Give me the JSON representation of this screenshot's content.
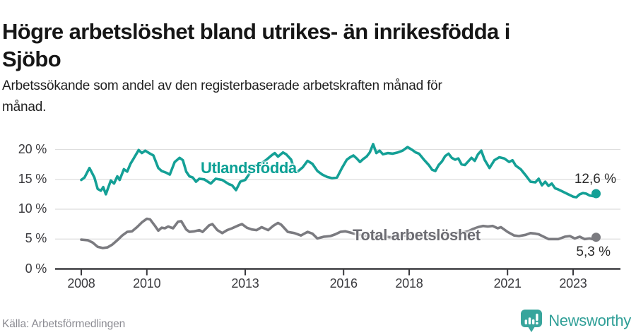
{
  "header": {
    "title_line1": "Högre arbetslöshet bland utrikes- än inrikesfödda i",
    "title_line2": "Sjöbo",
    "subtitle_line1": "Arbetssökande som andel av den registerbaserade arbetskraften månad för",
    "subtitle_line2": "månad."
  },
  "footer": {
    "source": "Källa: Arbetsförmedlingen",
    "brand": "Newsworthy"
  },
  "colors": {
    "accent_teal": "#14a096",
    "line_gray": "#7b7b80",
    "axis": "#3a3a3e",
    "grid": "#dedede",
    "brand_teal": "#38a59c"
  },
  "chart_data": {
    "type": "line",
    "title": "Högre arbetslöshet bland utrikes- än inrikesfödda i Sjöbo",
    "subtitle": "Arbetssökande som andel av den registerbaserade arbetskraften månad för månad.",
    "xlabel": "",
    "ylabel": "",
    "unit": "%",
    "x_range": [
      2008,
      2023.75
    ],
    "ylim": [
      0,
      22
    ],
    "grid": "horizontal",
    "y_ticks": [
      {
        "value": 0,
        "label": "0 %"
      },
      {
        "value": 5,
        "label": "5 %"
      },
      {
        "value": 10,
        "label": "10 %"
      },
      {
        "value": 15,
        "label": "15 %"
      },
      {
        "value": 20,
        "label": "20 %"
      }
    ],
    "x_ticks": [
      {
        "value": 2008,
        "label": "2008"
      },
      {
        "value": 2010,
        "label": "2010"
      },
      {
        "value": 2013,
        "label": "2013"
      },
      {
        "value": 2016,
        "label": "2016"
      },
      {
        "value": 2018,
        "label": "2018"
      },
      {
        "value": 2021,
        "label": "2021"
      },
      {
        "value": 2023,
        "label": "2023"
      }
    ],
    "series": [
      {
        "name": "Utlandsfödda",
        "color": "#14a096",
        "end_value": 12.6,
        "end_label": "12,6 %",
        "points": [
          [
            2008.0,
            14.9
          ],
          [
            2008.1,
            15.3
          ],
          [
            2008.25,
            16.9
          ],
          [
            2008.4,
            15.3
          ],
          [
            2008.5,
            13.4
          ],
          [
            2008.6,
            13.1
          ],
          [
            2008.67,
            13.7
          ],
          [
            2008.75,
            12.5
          ],
          [
            2008.9,
            14.8
          ],
          [
            2009.0,
            14.3
          ],
          [
            2009.1,
            15.5
          ],
          [
            2009.17,
            14.9
          ],
          [
            2009.3,
            16.7
          ],
          [
            2009.4,
            16.3
          ],
          [
            2009.5,
            17.6
          ],
          [
            2009.6,
            18.5
          ],
          [
            2009.75,
            19.9
          ],
          [
            2009.85,
            19.4
          ],
          [
            2009.95,
            19.8
          ],
          [
            2010.1,
            19.3
          ],
          [
            2010.2,
            19.0
          ],
          [
            2010.35,
            16.9
          ],
          [
            2010.45,
            16.4
          ],
          [
            2010.6,
            16.1
          ],
          [
            2010.7,
            15.8
          ],
          [
            2010.85,
            17.9
          ],
          [
            2011.0,
            18.6
          ],
          [
            2011.1,
            18.2
          ],
          [
            2011.2,
            16.3
          ],
          [
            2011.3,
            15.5
          ],
          [
            2011.4,
            15.3
          ],
          [
            2011.5,
            14.6
          ],
          [
            2011.6,
            15.1
          ],
          [
            2011.75,
            15.0
          ],
          [
            2011.95,
            14.3
          ],
          [
            2012.1,
            15.1
          ],
          [
            2012.3,
            14.9
          ],
          [
            2012.5,
            14.2
          ],
          [
            2012.6,
            14.0
          ],
          [
            2012.72,
            13.2
          ],
          [
            2012.85,
            14.6
          ],
          [
            2013.0,
            14.9
          ],
          [
            2013.1,
            15.7
          ],
          [
            2013.3,
            17.3
          ],
          [
            2013.5,
            17.7
          ],
          [
            2013.65,
            18.3
          ],
          [
            2013.8,
            19.0
          ],
          [
            2013.9,
            19.4
          ],
          [
            2014.0,
            18.8
          ],
          [
            2014.15,
            19.5
          ],
          [
            2014.25,
            19.2
          ],
          [
            2014.4,
            18.3
          ],
          [
            2014.5,
            16.6
          ],
          [
            2014.6,
            16.3
          ],
          [
            2014.75,
            17.0
          ],
          [
            2014.9,
            18.1
          ],
          [
            2015.05,
            17.6
          ],
          [
            2015.2,
            16.4
          ],
          [
            2015.35,
            15.8
          ],
          [
            2015.5,
            15.4
          ],
          [
            2015.65,
            15.2
          ],
          [
            2015.8,
            15.3
          ],
          [
            2015.95,
            16.9
          ],
          [
            2016.1,
            18.3
          ],
          [
            2016.2,
            18.7
          ],
          [
            2016.3,
            19.0
          ],
          [
            2016.4,
            18.5
          ],
          [
            2016.5,
            17.9
          ],
          [
            2016.6,
            18.4
          ],
          [
            2016.7,
            18.8
          ],
          [
            2016.8,
            19.5
          ],
          [
            2016.9,
            20.9
          ],
          [
            2017.0,
            19.4
          ],
          [
            2017.1,
            19.8
          ],
          [
            2017.2,
            19.2
          ],
          [
            2017.35,
            19.4
          ],
          [
            2017.5,
            19.3
          ],
          [
            2017.65,
            19.5
          ],
          [
            2017.8,
            19.8
          ],
          [
            2017.95,
            20.4
          ],
          [
            2018.1,
            19.9
          ],
          [
            2018.2,
            19.5
          ],
          [
            2018.3,
            19.3
          ],
          [
            2018.45,
            18.3
          ],
          [
            2018.6,
            17.4
          ],
          [
            2018.7,
            16.6
          ],
          [
            2018.8,
            16.4
          ],
          [
            2018.9,
            17.4
          ],
          [
            2019.0,
            18.0
          ],
          [
            2019.1,
            18.9
          ],
          [
            2019.2,
            19.3
          ],
          [
            2019.3,
            18.6
          ],
          [
            2019.4,
            18.3
          ],
          [
            2019.5,
            18.5
          ],
          [
            2019.6,
            17.5
          ],
          [
            2019.7,
            17.4
          ],
          [
            2019.8,
            18.0
          ],
          [
            2019.9,
            18.6
          ],
          [
            2020.0,
            18.1
          ],
          [
            2020.1,
            19.2
          ],
          [
            2020.2,
            19.8
          ],
          [
            2020.3,
            18.3
          ],
          [
            2020.45,
            16.9
          ],
          [
            2020.6,
            18.2
          ],
          [
            2020.75,
            18.7
          ],
          [
            2020.9,
            18.5
          ],
          [
            2021.05,
            17.9
          ],
          [
            2021.15,
            18.2
          ],
          [
            2021.25,
            17.3
          ],
          [
            2021.4,
            16.7
          ],
          [
            2021.55,
            15.7
          ],
          [
            2021.7,
            14.6
          ],
          [
            2021.85,
            14.5
          ],
          [
            2021.95,
            15.1
          ],
          [
            2022.05,
            14.0
          ],
          [
            2022.15,
            14.6
          ],
          [
            2022.25,
            13.9
          ],
          [
            2022.35,
            14.3
          ],
          [
            2022.45,
            13.5
          ],
          [
            2022.55,
            13.3
          ],
          [
            2022.7,
            12.9
          ],
          [
            2022.85,
            12.5
          ],
          [
            2023.0,
            12.1
          ],
          [
            2023.1,
            12.0
          ],
          [
            2023.2,
            12.5
          ],
          [
            2023.3,
            12.7
          ],
          [
            2023.4,
            12.6
          ],
          [
            2023.5,
            12.3
          ],
          [
            2023.6,
            12.2
          ],
          [
            2023.7,
            12.6
          ]
        ]
      },
      {
        "name": "Total arbetslöshet",
        "color": "#7b7b80",
        "end_value": 5.3,
        "end_label": "5,3 %",
        "points": [
          [
            2008.0,
            4.9
          ],
          [
            2008.2,
            4.8
          ],
          [
            2008.35,
            4.4
          ],
          [
            2008.5,
            3.7
          ],
          [
            2008.65,
            3.5
          ],
          [
            2008.8,
            3.6
          ],
          [
            2008.95,
            4.1
          ],
          [
            2009.1,
            4.8
          ],
          [
            2009.25,
            5.6
          ],
          [
            2009.4,
            6.2
          ],
          [
            2009.55,
            6.3
          ],
          [
            2009.7,
            7.0
          ],
          [
            2009.85,
            7.8
          ],
          [
            2010.0,
            8.4
          ],
          [
            2010.1,
            8.3
          ],
          [
            2010.25,
            7.2
          ],
          [
            2010.35,
            6.4
          ],
          [
            2010.45,
            6.9
          ],
          [
            2010.55,
            6.8
          ],
          [
            2010.65,
            7.1
          ],
          [
            2010.8,
            6.8
          ],
          [
            2010.95,
            7.9
          ],
          [
            2011.05,
            8.0
          ],
          [
            2011.2,
            6.6
          ],
          [
            2011.3,
            6.2
          ],
          [
            2011.45,
            6.3
          ],
          [
            2011.6,
            6.5
          ],
          [
            2011.7,
            6.2
          ],
          [
            2011.9,
            7.3
          ],
          [
            2012.0,
            7.5
          ],
          [
            2012.15,
            6.5
          ],
          [
            2012.3,
            6.0
          ],
          [
            2012.45,
            6.5
          ],
          [
            2012.6,
            6.8
          ],
          [
            2012.8,
            7.3
          ],
          [
            2012.9,
            7.5
          ],
          [
            2013.05,
            6.9
          ],
          [
            2013.2,
            6.6
          ],
          [
            2013.35,
            6.5
          ],
          [
            2013.5,
            7.0
          ],
          [
            2013.7,
            6.5
          ],
          [
            2013.85,
            7.2
          ],
          [
            2014.0,
            7.7
          ],
          [
            2014.1,
            7.4
          ],
          [
            2014.3,
            6.2
          ],
          [
            2014.5,
            6.0
          ],
          [
            2014.7,
            5.6
          ],
          [
            2014.9,
            6.2
          ],
          [
            2015.05,
            5.9
          ],
          [
            2015.2,
            5.1
          ],
          [
            2015.4,
            5.4
          ],
          [
            2015.6,
            5.5
          ],
          [
            2015.75,
            5.8
          ],
          [
            2015.9,
            6.2
          ],
          [
            2016.05,
            6.3
          ],
          [
            2016.2,
            6.1
          ],
          [
            2016.4,
            5.8
          ],
          [
            2016.6,
            5.6
          ],
          [
            2016.8,
            5.5
          ],
          [
            2017.0,
            5.6
          ],
          [
            2017.2,
            5.5
          ],
          [
            2017.4,
            5.3
          ],
          [
            2017.6,
            5.4
          ],
          [
            2017.8,
            5.6
          ],
          [
            2018.0,
            5.5
          ],
          [
            2018.2,
            5.3
          ],
          [
            2018.4,
            5.4
          ],
          [
            2018.6,
            5.5
          ],
          [
            2018.8,
            5.6
          ],
          [
            2019.0,
            5.7
          ],
          [
            2019.2,
            5.8
          ],
          [
            2019.4,
            6.0
          ],
          [
            2019.6,
            6.1
          ],
          [
            2019.8,
            6.3
          ],
          [
            2019.95,
            6.7
          ],
          [
            2020.1,
            7.0
          ],
          [
            2020.25,
            7.2
          ],
          [
            2020.4,
            7.1
          ],
          [
            2020.55,
            7.2
          ],
          [
            2020.7,
            6.8
          ],
          [
            2020.8,
            7.0
          ],
          [
            2021.0,
            6.2
          ],
          [
            2021.2,
            5.6
          ],
          [
            2021.35,
            5.5
          ],
          [
            2021.55,
            5.7
          ],
          [
            2021.7,
            6.0
          ],
          [
            2021.85,
            5.9
          ],
          [
            2021.95,
            5.8
          ],
          [
            2022.1,
            5.4
          ],
          [
            2022.25,
            5.0
          ],
          [
            2022.4,
            5.0
          ],
          [
            2022.55,
            5.0
          ],
          [
            2022.75,
            5.4
          ],
          [
            2022.9,
            5.5
          ],
          [
            2023.05,
            5.1
          ],
          [
            2023.2,
            5.4
          ],
          [
            2023.35,
            5.0
          ],
          [
            2023.5,
            5.1
          ],
          [
            2023.6,
            5.0
          ],
          [
            2023.7,
            5.3
          ]
        ]
      }
    ]
  }
}
